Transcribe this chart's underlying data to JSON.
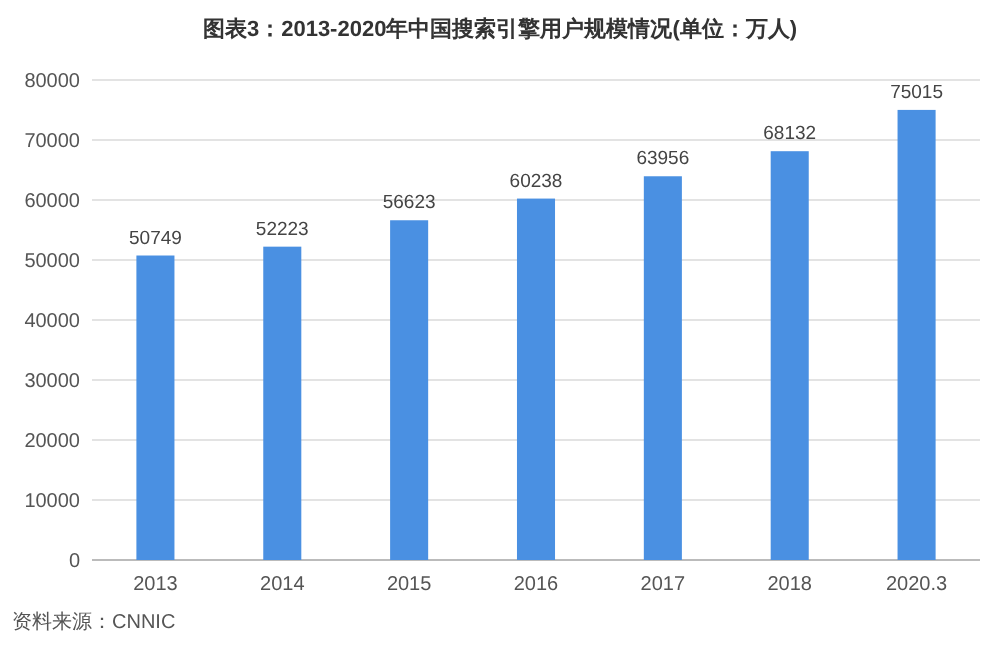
{
  "chart_data": {
    "type": "bar",
    "title": "图表3：2013-2020年中国搜索引擎用户规模情况(单位：万人)",
    "categories": [
      "2013",
      "2014",
      "2015",
      "2016",
      "2017",
      "2018",
      "2020.3"
    ],
    "values": [
      50749,
      52223,
      56623,
      60238,
      63956,
      68132,
      75015
    ],
    "color": "#4a90e2",
    "ylim": [
      0,
      80000
    ],
    "yticks": [
      0,
      10000,
      20000,
      30000,
      40000,
      50000,
      60000,
      70000,
      80000
    ],
    "grid": "y",
    "data_labels": true,
    "annotations": [
      "资料来源：CNNIC"
    ]
  }
}
